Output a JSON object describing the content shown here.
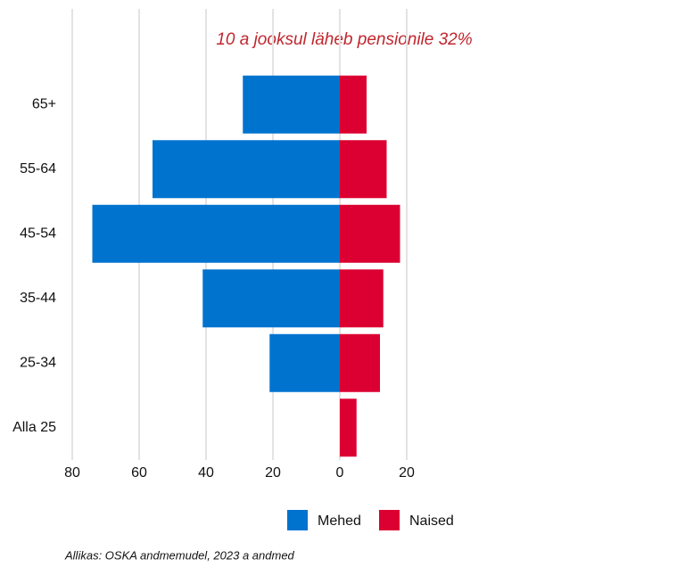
{
  "chart_data": {
    "type": "bar",
    "orientation": "horizontal",
    "stacked": "diverging",
    "title": "10 a jooksul läheb pensionile 32%",
    "source": "Allikas: OSKA andmemudel, 2023 a andmed",
    "categories": [
      "65+",
      "55-64",
      "45-54",
      "35-44",
      "25-34",
      "Alla 25"
    ],
    "series": [
      {
        "name": "Mehed",
        "color": "#0073cf",
        "values": [
          -29,
          -56,
          -74,
          -41,
          -21,
          0
        ]
      },
      {
        "name": "Naised",
        "color": "#dc0032",
        "values": [
          8,
          14,
          18,
          13,
          12,
          5
        ]
      }
    ],
    "xlim": [
      -80,
      20
    ],
    "xticks": [
      {
        "value": -80,
        "label": "80"
      },
      {
        "value": -60,
        "label": "60"
      },
      {
        "value": -40,
        "label": "40"
      },
      {
        "value": -20,
        "label": "20"
      },
      0,
      20
    ],
    "grid": true,
    "legend": "bottom"
  }
}
